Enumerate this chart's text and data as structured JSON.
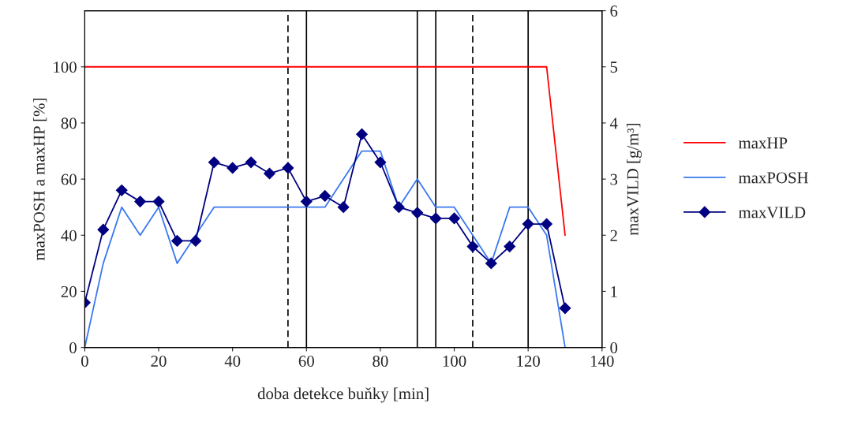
{
  "chart_data": {
    "type": "line",
    "xlabel": "doba detekce buňky [min]",
    "ylabel": "maxPOSH a maxHP [%]",
    "y2label": "maxVILD [g/m³]",
    "xlim": [
      0,
      140
    ],
    "xticks": [
      0,
      20,
      40,
      60,
      80,
      100,
      120,
      140
    ],
    "ylim": [
      0,
      120
    ],
    "yticks": [
      0,
      20,
      40,
      60,
      80,
      100
    ],
    "y2lim": [
      0,
      6
    ],
    "y2ticks": [
      0,
      1,
      2,
      3,
      4,
      5,
      6
    ],
    "grid": false,
    "legend": "right",
    "series": [
      {
        "name": "maxHP",
        "color": "#ff0000",
        "x": [
          0,
          125,
          130
        ],
        "values": [
          100,
          100,
          40
        ],
        "marker": "none"
      },
      {
        "name": "maxPOSH",
        "color": "#3a78f0",
        "x": [
          0,
          5,
          10,
          15,
          20,
          25,
          30,
          35,
          40,
          45,
          50,
          55,
          60,
          65,
          70,
          75,
          80,
          85,
          90,
          95,
          100,
          105,
          110,
          115,
          120,
          125,
          130
        ],
        "values": [
          0,
          30,
          50,
          40,
          50,
          30,
          40,
          50,
          50,
          50,
          50,
          50,
          50,
          50,
          60,
          70,
          70,
          50,
          60,
          50,
          50,
          40,
          30,
          50,
          50,
          40,
          0
        ],
        "marker": "none"
      },
      {
        "name": "maxVILD",
        "color": "#000080",
        "axis": "y2",
        "marker": "diamond",
        "x": [
          0,
          5,
          10,
          15,
          20,
          25,
          30,
          35,
          40,
          45,
          50,
          55,
          60,
          65,
          70,
          75,
          80,
          85,
          90,
          95,
          100,
          105,
          110,
          115,
          120,
          125,
          130
        ],
        "values": [
          0.8,
          2.1,
          2.8,
          2.6,
          2.6,
          1.9,
          1.9,
          3.3,
          3.2,
          3.3,
          3.1,
          3.2,
          2.6,
          2.7,
          2.5,
          3.8,
          3.3,
          2.5,
          2.4,
          2.3,
          2.3,
          1.8,
          1.5,
          1.8,
          2.2,
          2.2,
          0.7
        ]
      }
    ],
    "ref_lines": [
      {
        "axis": "x",
        "value": 55,
        "line_style": "dashed"
      },
      {
        "axis": "x",
        "value": 60,
        "line_style": "solid"
      },
      {
        "axis": "x",
        "value": 90,
        "line_style": "solid"
      },
      {
        "axis": "x",
        "value": 95,
        "line_style": "solid"
      },
      {
        "axis": "x",
        "value": 105,
        "line_style": "dashed"
      },
      {
        "axis": "x",
        "value": 120,
        "line_style": "solid"
      }
    ]
  }
}
